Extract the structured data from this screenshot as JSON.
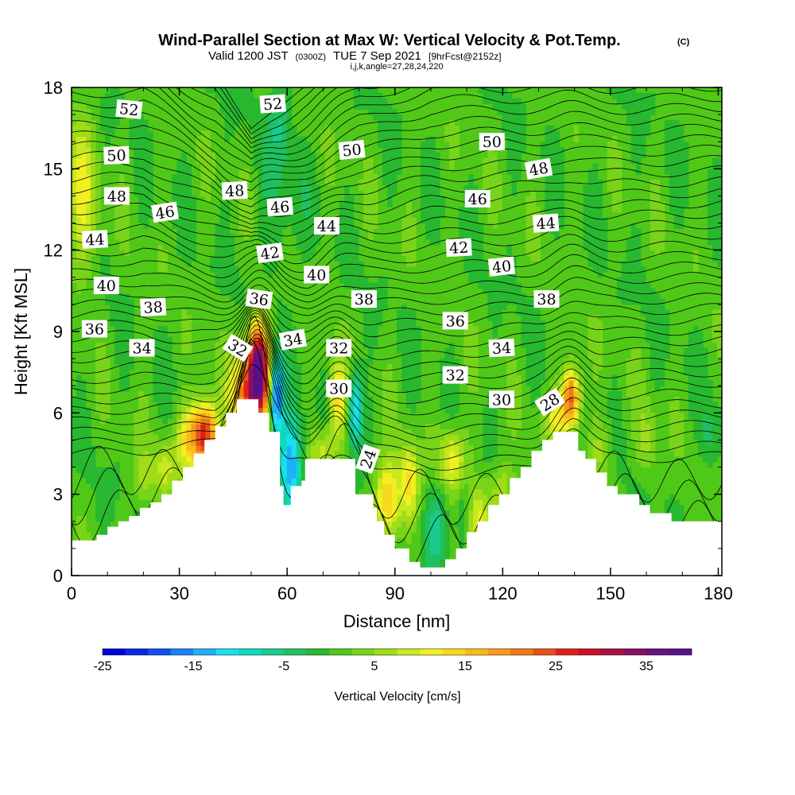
{
  "title": {
    "main": "Wind-Parallel Section at Max W: Vertical Velocity & Pot.Temp.",
    "main_mark": "(C)",
    "valid_prefix": "Valid 1200 JST",
    "valid_utc": "(0300Z)",
    "valid_date": "TUE 7 Sep 2021",
    "forecast": "[9hrFcst@2152z]",
    "indices": "i,j,k,angle=27,28,24,220"
  },
  "chart_data": {
    "type": "heatmap",
    "xlabel": "Distance [nm]",
    "ylabel": "Height [Kft MSL]",
    "xlim": [
      0,
      181
    ],
    "ylim": [
      0,
      18
    ],
    "x_ticks": [
      0,
      30,
      60,
      90,
      120,
      150,
      180
    ],
    "y_ticks": [
      0,
      3,
      6,
      9,
      12,
      15,
      18
    ],
    "x_tick_labels": [
      "0",
      "30",
      "60",
      "90",
      "120",
      "150",
      "180"
    ],
    "y_tick_labels": [
      "0",
      "3",
      "6",
      "9",
      "12",
      "15",
      "18"
    ],
    "colorbar": {
      "title": "Vertical Velocity [cm/s]",
      "min": -25,
      "max": 40,
      "step": 2.5,
      "tick_values": [
        -25,
        -15,
        -5,
        5,
        15,
        25,
        35
      ],
      "tick_labels": [
        "-25",
        "-15",
        "-5",
        "5",
        "15",
        "25",
        "35"
      ],
      "colors": [
        "#0000d8",
        "#0828e8",
        "#1050f0",
        "#1a80f8",
        "#20b0f8",
        "#18e0f0",
        "#10d8c0",
        "#18cc90",
        "#20c060",
        "#28b830",
        "#50c818",
        "#78d418",
        "#a0dc18",
        "#c8e820",
        "#f0f020",
        "#f8d820",
        "#f8bc18",
        "#f89c18",
        "#f07818",
        "#e85018",
        "#e02018",
        "#c81028",
        "#a81040",
        "#881060",
        "#6a1080",
        "#58108c"
      ]
    },
    "terrain": {
      "x": [
        0,
        7,
        7,
        10,
        10,
        13,
        13,
        16,
        16,
        19,
        19,
        22,
        22,
        25,
        25,
        28,
        28,
        31,
        31,
        34,
        34,
        37,
        37,
        40,
        40,
        43,
        43,
        46,
        46,
        49,
        49,
        52,
        52,
        55,
        55,
        58,
        58,
        59,
        59,
        61,
        61,
        64,
        64,
        65,
        65,
        69,
        69,
        71,
        71,
        75,
        75,
        79,
        79,
        82,
        82,
        84,
        84,
        85,
        85,
        87,
        87,
        90,
        90,
        94,
        94,
        97,
        97,
        100,
        100,
        104,
        104,
        107,
        107,
        110,
        110,
        113,
        113,
        116,
        116,
        119,
        119,
        122,
        122,
        125,
        125,
        128,
        128,
        131,
        131,
        134,
        134,
        137,
        137,
        141,
        141,
        143,
        143,
        146,
        146,
        149,
        149,
        152,
        152,
        155,
        155,
        158,
        158,
        161,
        161,
        164,
        164,
        167,
        167,
        170,
        170,
        173,
        173,
        176,
        176,
        179,
        179,
        181
      ],
      "height": [
        1.3,
        1.3,
        1.5,
        1.5,
        1.8,
        1.8,
        2.0,
        2.0,
        2.2,
        2.2,
        2.5,
        2.5,
        2.7,
        2.7,
        3.0,
        3.0,
        3.5,
        3.5,
        4.0,
        4.0,
        4.5,
        4.5,
        5.0,
        5.0,
        5.5,
        5.5,
        6.0,
        6.0,
        6.5,
        6.5,
        6.5,
        6.5,
        6.0,
        6.0,
        5.3,
        5.3,
        3.3,
        3.3,
        2.6,
        2.6,
        3.3,
        3.3,
        3.5,
        3.5,
        4.3,
        4.3,
        4.3,
        4.3,
        4.3,
        4.3,
        4.3,
        4.3,
        3.0,
        3.0,
        3.0,
        3.0,
        2.5,
        2.5,
        2.0,
        2.0,
        1.5,
        1.5,
        1.0,
        1.0,
        0.5,
        0.5,
        0.3,
        0.3,
        0.3,
        0.3,
        0.6,
        0.6,
        1.0,
        1.0,
        1.6,
        1.6,
        2.0,
        2.0,
        2.6,
        2.6,
        3.0,
        3.0,
        3.6,
        3.6,
        4.0,
        4.0,
        4.6,
        4.6,
        5.0,
        5.0,
        5.3,
        5.3,
        5.3,
        5.3,
        4.6,
        4.6,
        4.3,
        4.3,
        3.8,
        3.8,
        3.3,
        3.3,
        3.0,
        3.0,
        3.0,
        3.0,
        2.6,
        2.6,
        2.3,
        2.3,
        2.3,
        2.3,
        2.0,
        2.0,
        2.0,
        2.0,
        2.0,
        2.0,
        2.0,
        2.0,
        2.0,
        2.0
      ]
    },
    "w_features": [
      {
        "x": 52,
        "y": 7.6,
        "w": 38,
        "sx": 3.0,
        "sy": 1.7
      },
      {
        "x": 48,
        "y": 6.6,
        "w": 18,
        "sx": 4.0,
        "sy": 1.6
      },
      {
        "x": 37,
        "y": 5.2,
        "w": 28,
        "sx": 3.5,
        "sy": 1.2
      },
      {
        "x": 32,
        "y": 5.0,
        "w": 10,
        "sx": 3.0,
        "sy": 1.2
      },
      {
        "x": 26,
        "y": 4.0,
        "w": 7,
        "sx": 3.0,
        "sy": 1.0
      },
      {
        "x": 20,
        "y": 3.6,
        "w": 5,
        "sx": 3.0,
        "sy": 1.0
      },
      {
        "x": 57,
        "y": 6.6,
        "w": -20,
        "sx": 1.8,
        "sy": 1.5
      },
      {
        "x": 61,
        "y": 4.0,
        "w": -16,
        "sx": 3.2,
        "sy": 1.8
      },
      {
        "x": 74,
        "y": 6.5,
        "w": 13,
        "sx": 2.5,
        "sy": 1.6
      },
      {
        "x": 79,
        "y": 6.2,
        "w": -14,
        "sx": 2.0,
        "sy": 1.4
      },
      {
        "x": 70,
        "y": 4.6,
        "w": 8,
        "sx": 3.5,
        "sy": 0.8
      },
      {
        "x": 88,
        "y": 2.8,
        "w": 16,
        "sx": 3.5,
        "sy": 1.4
      },
      {
        "x": 94,
        "y": 3.4,
        "w": 12,
        "sx": 2.5,
        "sy": 1.4
      },
      {
        "x": 106,
        "y": 4.3,
        "w": 11,
        "sx": 4.0,
        "sy": 1.2
      },
      {
        "x": 113,
        "y": 2.0,
        "w": 10,
        "sx": 3.0,
        "sy": 1.3
      },
      {
        "x": 120,
        "y": 3.2,
        "w": 7,
        "sx": 3.5,
        "sy": 1.0
      },
      {
        "x": 102,
        "y": 2.0,
        "w": -7,
        "sx": 3.0,
        "sy": 1.6
      },
      {
        "x": 109,
        "y": 2.2,
        "w": -5,
        "sx": 2.5,
        "sy": 1.3
      },
      {
        "x": 139,
        "y": 6.6,
        "w": 24,
        "sx": 2.5,
        "sy": 1.1
      },
      {
        "x": 135,
        "y": 5.8,
        "w": 9,
        "sx": 3.0,
        "sy": 0.9
      },
      {
        "x": 147,
        "y": 4.6,
        "w": 5,
        "sx": 3.5,
        "sy": 1.2
      },
      {
        "x": 160,
        "y": 5.0,
        "w": 5,
        "sx": 3.0,
        "sy": 1.2
      },
      {
        "x": 178,
        "y": 5.2,
        "w": -4,
        "sx": 3.0,
        "sy": 1.2
      },
      {
        "x": 3,
        "y": 14,
        "w": 9,
        "sx": 4.0,
        "sy": 3.0
      },
      {
        "x": 58,
        "y": 16.8,
        "w": -5,
        "sx": 3.0,
        "sy": 1.5
      },
      {
        "x": 58,
        "y": 13.5,
        "w": -3,
        "sx": 6.0,
        "sy": 3.0
      }
    ],
    "isentropes": {
      "levels": [
        22,
        24,
        26,
        28,
        30,
        32,
        34,
        36,
        38,
        40,
        42,
        44,
        46,
        48,
        50,
        52
      ],
      "x": [
        0,
        20,
        40,
        50,
        56,
        66,
        80,
        100,
        130,
        150,
        181
      ],
      "base_height": [
        4.5,
        4.6,
        4.9,
        5.8,
        5.2,
        4.4,
        4.0,
        3.6,
        4.0,
        4.3,
        4.4
      ],
      "step": [
        0.78,
        0.78,
        0.66,
        0.52,
        0.58,
        0.66,
        0.75,
        0.82,
        0.8,
        0.78,
        0.78
      ],
      "bump_x": [
        52,
        74,
        139
      ],
      "bump_height": [
        3.2,
        1.8,
        1.4
      ]
    },
    "contour_labels": [
      {
        "text": "52",
        "x": 16,
        "y": 17.2,
        "rotate": 6
      },
      {
        "text": "52",
        "x": 56,
        "y": 17.4,
        "rotate": -4
      },
      {
        "text": "50",
        "x": 12.5,
        "y": 15.5,
        "rotate": -2
      },
      {
        "text": "50",
        "x": 78,
        "y": 15.7,
        "rotate": -6
      },
      {
        "text": "50",
        "x": 117,
        "y": 16.0,
        "rotate": 0
      },
      {
        "text": "48",
        "x": 12.6,
        "y": 14.0,
        "rotate": 0
      },
      {
        "text": "48",
        "x": 45.4,
        "y": 14.2,
        "rotate": -3
      },
      {
        "text": "48",
        "x": 130,
        "y": 15.0,
        "rotate": -10
      },
      {
        "text": "46",
        "x": 26,
        "y": 13.4,
        "rotate": -9
      },
      {
        "text": "46",
        "x": 58,
        "y": 13.6,
        "rotate": -4
      },
      {
        "text": "46",
        "x": 113,
        "y": 13.9,
        "rotate": 0
      },
      {
        "text": "44",
        "x": 6.5,
        "y": 12.4,
        "rotate": -3
      },
      {
        "text": "44",
        "x": 71,
        "y": 12.9,
        "rotate": 0
      },
      {
        "text": "44",
        "x": 132,
        "y": 13.0,
        "rotate": -4
      },
      {
        "text": "42",
        "x": 55.2,
        "y": 11.9,
        "rotate": -8
      },
      {
        "text": "42",
        "x": 107.8,
        "y": 12.1,
        "rotate": -3
      },
      {
        "text": "40",
        "x": 9.7,
        "y": 10.7,
        "rotate": 0
      },
      {
        "text": "40",
        "x": 68.2,
        "y": 11.1,
        "rotate": 0
      },
      {
        "text": "40",
        "x": 119.7,
        "y": 11.4,
        "rotate": -6
      },
      {
        "text": "38",
        "x": 22.7,
        "y": 9.9,
        "rotate": -3
      },
      {
        "text": "38",
        "x": 81.4,
        "y": 10.2,
        "rotate": 0
      },
      {
        "text": "38",
        "x": 132.2,
        "y": 10.2,
        "rotate": 0
      },
      {
        "text": "36",
        "x": 6.4,
        "y": 9.1,
        "rotate": 0
      },
      {
        "text": "36",
        "x": 52.2,
        "y": 10.2,
        "rotate": 8
      },
      {
        "text": "36",
        "x": 106.8,
        "y": 9.4,
        "rotate": 0
      },
      {
        "text": "34",
        "x": 19.6,
        "y": 8.4,
        "rotate": 0
      },
      {
        "text": "34",
        "x": 61.6,
        "y": 8.7,
        "rotate": -10
      },
      {
        "text": "34",
        "x": 119.7,
        "y": 8.4,
        "rotate": -3
      },
      {
        "text": "32",
        "x": 46.3,
        "y": 8.4,
        "rotate": 32
      },
      {
        "text": "32",
        "x": 74.4,
        "y": 8.4,
        "rotate": 0
      },
      {
        "text": "32",
        "x": 106.8,
        "y": 7.4,
        "rotate": 0
      },
      {
        "text": "30",
        "x": 74.4,
        "y": 6.9,
        "rotate": 0
      },
      {
        "text": "30",
        "x": 119.7,
        "y": 6.5,
        "rotate": 0
      },
      {
        "text": "28",
        "x": 133.1,
        "y": 6.4,
        "rotate": -32
      },
      {
        "text": "24",
        "x": 82.5,
        "y": 4.3,
        "rotate": -70
      }
    ]
  }
}
